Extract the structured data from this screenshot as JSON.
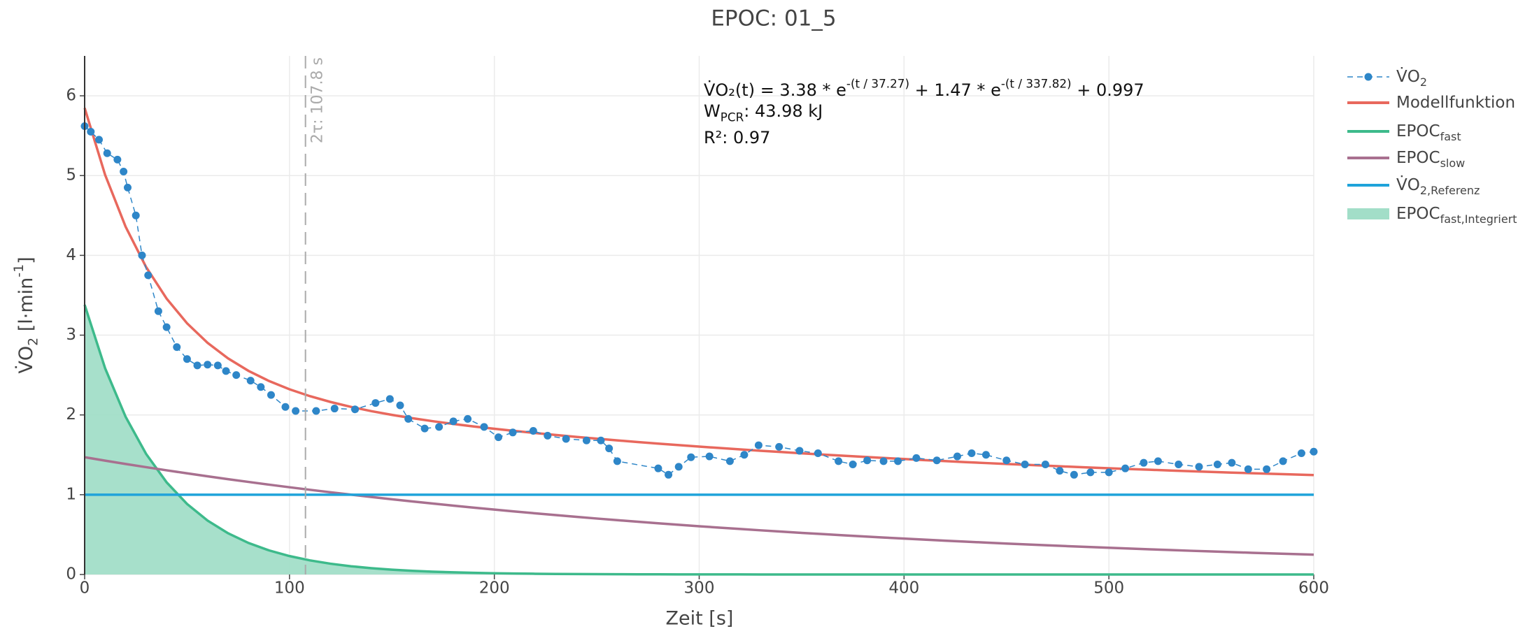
{
  "chart_data": {
    "type": "line",
    "title": "EPOC: 01_5",
    "xlabel": "Zeit [s]",
    "ylabel": [
      {
        "text": "V̇O"
      },
      {
        "sub": "2"
      },
      {
        "text": " [l·min"
      },
      {
        "sup": "-1"
      },
      {
        "text": "]"
      }
    ],
    "xlim": [
      0,
      600
    ],
    "ylim": [
      0,
      6.5
    ],
    "xticks": [
      0,
      100,
      200,
      300,
      400,
      500,
      600
    ],
    "yticks": [
      0,
      1,
      2,
      3,
      4,
      5,
      6
    ],
    "grid": true,
    "legend": "outside-right",
    "vline": {
      "x": 107.8,
      "label": "2τ: 107.8 s"
    },
    "annotation": [
      [
        {
          "text": "V̇O₂(t) = 3.38 * e"
        },
        {
          "sup": "-(t / 37.27)"
        },
        {
          "text": " + 1.47 * e"
        },
        {
          "sup": "-(t / 337.82)"
        },
        {
          "text": " + 0.997"
        }
      ],
      [
        {
          "text": "W"
        },
        {
          "sub": "PCR"
        },
        {
          "text": ": 43.98 kJ"
        }
      ],
      [
        {
          "text": "R²: 0.97"
        }
      ]
    ],
    "series": [
      {
        "name": "V̇O",
        "name_sub": "2",
        "kind": "markers",
        "dash": true,
        "color": "#2e86c8",
        "x": [
          0,
          3,
          7,
          11,
          16,
          19,
          21,
          25,
          28,
          31,
          36,
          40,
          45,
          50,
          55,
          60,
          65,
          69,
          74,
          81,
          86,
          91,
          98,
          103,
          113,
          122,
          132,
          142,
          149,
          154,
          158,
          166,
          173,
          180,
          187,
          195,
          202,
          209,
          219,
          226,
          235,
          245,
          252,
          256,
          260,
          280,
          285,
          290,
          296,
          305,
          315,
          322,
          329,
          339,
          349,
          358,
          368,
          375,
          382,
          390,
          397,
          406,
          416,
          426,
          433,
          440,
          450,
          459,
          469,
          476,
          483,
          491,
          500,
          508,
          517,
          524,
          534,
          544,
          553,
          560,
          568,
          577,
          585,
          594,
          600
        ],
        "values": [
          5.62,
          5.55,
          5.45,
          5.28,
          5.2,
          5.05,
          4.85,
          4.5,
          4.0,
          3.75,
          3.3,
          3.1,
          2.85,
          2.7,
          2.62,
          2.63,
          2.62,
          2.55,
          2.5,
          2.43,
          2.35,
          2.25,
          2.1,
          2.05,
          2.05,
          2.08,
          2.07,
          2.15,
          2.2,
          2.12,
          1.95,
          1.83,
          1.85,
          1.92,
          1.95,
          1.85,
          1.72,
          1.78,
          1.8,
          1.74,
          1.7,
          1.68,
          1.68,
          1.58,
          1.42,
          1.33,
          1.25,
          1.35,
          1.47,
          1.48,
          1.42,
          1.5,
          1.62,
          1.6,
          1.55,
          1.52,
          1.42,
          1.38,
          1.43,
          1.42,
          1.42,
          1.46,
          1.43,
          1.48,
          1.52,
          1.5,
          1.43,
          1.38,
          1.38,
          1.3,
          1.25,
          1.28,
          1.28,
          1.33,
          1.4,
          1.42,
          1.38,
          1.35,
          1.38,
          1.4,
          1.32,
          1.32,
          1.42,
          1.52,
          1.54
        ]
      },
      {
        "name": "Modellfunktion",
        "kind": "line",
        "color": "#e8685d",
        "x": [
          0,
          10,
          20,
          30,
          40,
          50,
          60,
          70,
          80,
          90,
          100,
          110,
          120,
          130,
          140,
          150,
          160,
          170,
          180,
          190,
          200,
          210,
          220,
          230,
          240,
          250,
          260,
          270,
          280,
          290,
          300,
          310,
          320,
          330,
          340,
          350,
          360,
          370,
          380,
          390,
          400,
          410,
          420,
          430,
          440,
          450,
          460,
          470,
          480,
          490,
          500,
          510,
          520,
          530,
          540,
          550,
          560,
          570,
          580,
          590,
          600
        ],
        "values": [
          5.847,
          5.0087,
          4.3588,
          3.8533,
          3.4585,
          3.1484,
          2.9035,
          2.7086,
          2.5522,
          2.4253,
          2.3214,
          2.2351,
          2.1627,
          2.1008,
          2.0473,
          2.0004,
          1.9587,
          1.9211,
          1.8869,
          1.8553,
          1.8261,
          1.7987,
          1.7727,
          1.7483,
          1.7249,
          1.7025,
          1.6812,
          1.6605,
          1.6407,
          1.6215,
          1.603,
          1.5851,
          1.5678,
          1.551,
          1.5348,
          1.519,
          1.5037,
          1.4889,
          1.4745,
          1.4606,
          1.4471,
          1.4339,
          1.4211,
          1.4087,
          1.3967,
          1.3851,
          1.3738,
          1.3628,
          1.3521,
          1.3417,
          1.3317,
          1.3219,
          1.3125,
          1.3033,
          1.2943,
          1.2857,
          1.2772,
          1.2691,
          1.2611,
          1.2534,
          1.2459
        ]
      },
      {
        "name": "EPOC",
        "name_sub": "fast",
        "kind": "line",
        "color": "#3dba8b",
        "x": [
          0,
          10,
          20,
          30,
          40,
          50,
          60,
          70,
          80,
          90,
          100,
          110,
          120,
          130,
          140,
          150,
          160,
          170,
          180,
          190,
          200,
          210,
          220,
          230,
          240,
          250,
          260,
          270,
          280,
          290,
          300,
          310,
          320,
          330,
          340,
          350,
          360,
          370,
          380,
          390,
          400,
          410,
          420,
          430,
          440,
          450,
          460,
          470,
          480,
          490,
          500,
          510,
          520,
          530,
          540,
          550,
          560,
          570,
          580,
          590,
          600
        ],
        "values": [
          3.38,
          2.5846,
          1.9763,
          1.5112,
          1.1556,
          0.8836,
          0.6757,
          0.5167,
          0.3951,
          0.3021,
          0.231,
          0.1766,
          0.1351,
          0.1033,
          0.079,
          0.0604,
          0.0462,
          0.0353,
          0.027,
          0.0206,
          0.0158,
          0.0121,
          0.0092,
          0.0071,
          0.0054,
          0.0041,
          0.0032,
          0.0024,
          0.0019,
          0.0014,
          0.0011,
          0.0008,
          0.0006,
          0.0005,
          0.0004,
          0.0003,
          0.0002,
          0.0002,
          0.0001,
          0.0001,
          0.0001,
          0.0001,
          0,
          0,
          0,
          0,
          0,
          0,
          0,
          0,
          0,
          0,
          0,
          0,
          0,
          0,
          0,
          0,
          0,
          0,
          0
        ]
      },
      {
        "name": "EPOC",
        "name_sub": "slow",
        "kind": "line",
        "color": "#a8708f",
        "x": [
          0,
          10,
          20,
          30,
          40,
          50,
          60,
          70,
          80,
          90,
          100,
          110,
          120,
          130,
          140,
          150,
          160,
          170,
          180,
          190,
          200,
          210,
          220,
          230,
          240,
          250,
          260,
          270,
          280,
          290,
          300,
          310,
          320,
          330,
          340,
          350,
          360,
          370,
          380,
          390,
          400,
          410,
          420,
          430,
          440,
          450,
          460,
          470,
          480,
          490,
          500,
          510,
          520,
          530,
          540,
          550,
          560,
          570,
          580,
          590,
          600
        ],
        "values": [
          1.47,
          1.4271,
          1.3855,
          1.3451,
          1.3059,
          1.2678,
          1.2308,
          1.1949,
          1.1601,
          1.1262,
          1.0934,
          1.0615,
          1.0306,
          1.0005,
          0.9713,
          0.943,
          0.9155,
          0.8888,
          0.8629,
          0.8377,
          0.8133,
          0.7896,
          0.7665,
          0.7442,
          0.7225,
          0.7014,
          0.681,
          0.6611,
          0.6418,
          0.6231,
          0.6049,
          0.5873,
          0.5702,
          0.5535,
          0.5374,
          0.5217,
          0.5065,
          0.4917,
          0.4774,
          0.4635,
          0.45,
          0.4368,
          0.4241,
          0.4117,
          0.3997,
          0.3881,
          0.3768,
          0.3658,
          0.3551,
          0.3447,
          0.3347,
          0.3249,
          0.3155,
          0.3063,
          0.2973,
          0.2887,
          0.2802,
          0.2721,
          0.2641,
          0.2564,
          0.2489
        ]
      },
      {
        "name": "V̇O",
        "name_sub": "2,Referenz",
        "kind": "line",
        "color": "#1fa3da",
        "x": [
          0,
          600
        ],
        "values": [
          1,
          1
        ]
      },
      {
        "name": "EPOC",
        "name_sub": "fast,Integriert",
        "kind": "fill",
        "color": "#a2dec8",
        "x": [
          0,
          10,
          20,
          30,
          40,
          50,
          60,
          70,
          80,
          90,
          100,
          110,
          120,
          130,
          140,
          150,
          160,
          170,
          180,
          190,
          200,
          210,
          220,
          230,
          240,
          250,
          260,
          270,
          280,
          290,
          300,
          310,
          320,
          330,
          340,
          350,
          360,
          370,
          380,
          390,
          400,
          410,
          420,
          430,
          440,
          450,
          460,
          470,
          480,
          490,
          500,
          510,
          520,
          530,
          540,
          550,
          560,
          570,
          580,
          590,
          600
        ],
        "values": [
          3.38,
          2.5846,
          1.9763,
          1.5112,
          1.1556,
          0.8836,
          0.6757,
          0.5167,
          0.3951,
          0.3021,
          0.231,
          0.1766,
          0.1351,
          0.1033,
          0.079,
          0.0604,
          0.0462,
          0.0353,
          0.027,
          0.0206,
          0.0158,
          0.0121,
          0.0092,
          0.0071,
          0.0054,
          0.0041,
          0.0032,
          0.0024,
          0.0019,
          0.0014,
          0.0011,
          0.0008,
          0.0006,
          0.0005,
          0.0004,
          0.0003,
          0.0002,
          0.0002,
          0.0001,
          0.0001,
          0.0001,
          0.0001,
          0,
          0,
          0,
          0,
          0,
          0,
          0,
          0,
          0,
          0,
          0,
          0,
          0,
          0,
          0,
          0,
          0,
          0,
          0
        ]
      }
    ]
  }
}
